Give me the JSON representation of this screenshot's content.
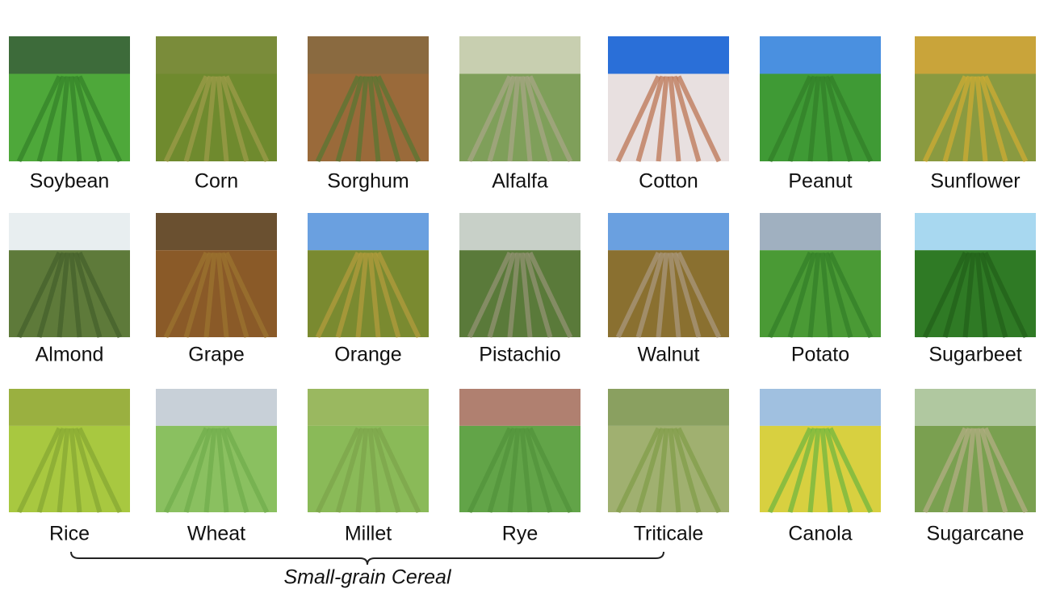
{
  "crops": [
    [
      "Soybean",
      "Corn",
      "Sorghum",
      "Alfalfa",
      "Cotton",
      "Peanut",
      "Sunflower"
    ],
    [
      "Almond",
      "Grape",
      "Orange",
      "Pistachio",
      "Walnut",
      "Potato",
      "Sugarbeet"
    ],
    [
      "Rice",
      "Wheat",
      "Millet",
      "Rye",
      "Triticale",
      "Canola",
      "Sugarcane"
    ]
  ],
  "bracket_label": "Small-grain Cereal"
}
